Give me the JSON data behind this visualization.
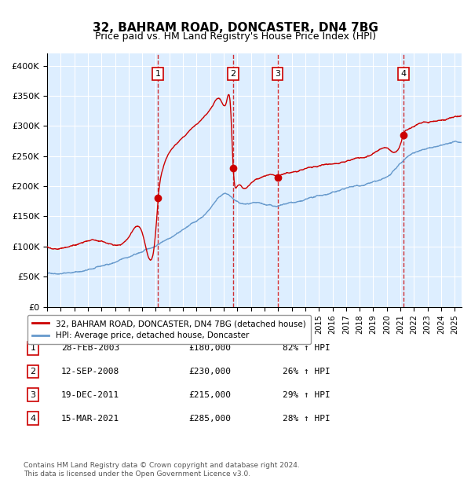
{
  "title": "32, BAHRAM ROAD, DONCASTER, DN4 7BG",
  "subtitle": "Price paid vs. HM Land Registry's House Price Index (HPI)",
  "legend_line1": "32, BAHRAM ROAD, DONCASTER, DN4 7BG (detached house)",
  "legend_line2": "HPI: Average price, detached house, Doncaster",
  "footer": "Contains HM Land Registry data © Crown copyright and database right 2024.\nThis data is licensed under the Open Government Licence v3.0.",
  "sales": [
    {
      "num": 1,
      "date_label": "28-FEB-2003",
      "price": 180000,
      "pct": "82% ↑ HPI",
      "date_x": 2003.16
    },
    {
      "num": 2,
      "date_label": "12-SEP-2008",
      "price": 230000,
      "pct": "26% ↑ HPI",
      "date_x": 2008.7
    },
    {
      "num": 3,
      "date_label": "19-DEC-2011",
      "price": 215000,
      "pct": "29% ↑ HPI",
      "date_x": 2011.96
    },
    {
      "num": 4,
      "date_label": "15-MAR-2021",
      "price": 285000,
      "pct": "28% ↑ HPI",
      "date_x": 2021.21
    }
  ],
  "red_line_color": "#cc0000",
  "blue_line_color": "#6699cc",
  "bg_color": "#ddeeff",
  "plot_bg_color": "#ddeeff",
  "grid_color": "#ffffff",
  "sale_dot_color": "#cc0000",
  "dashed_line_color": "#cc0000",
  "xlabel_color": "#000000",
  "ylim": [
    0,
    420000
  ],
  "yticks": [
    0,
    50000,
    100000,
    150000,
    200000,
    250000,
    300000,
    350000,
    400000
  ],
  "ytick_labels": [
    "£0",
    "£50K",
    "£100K",
    "£150K",
    "£200K",
    "£250K",
    "£300K",
    "£350K",
    "£400K"
  ],
  "xmin": 1995,
  "xmax": 2025.5
}
